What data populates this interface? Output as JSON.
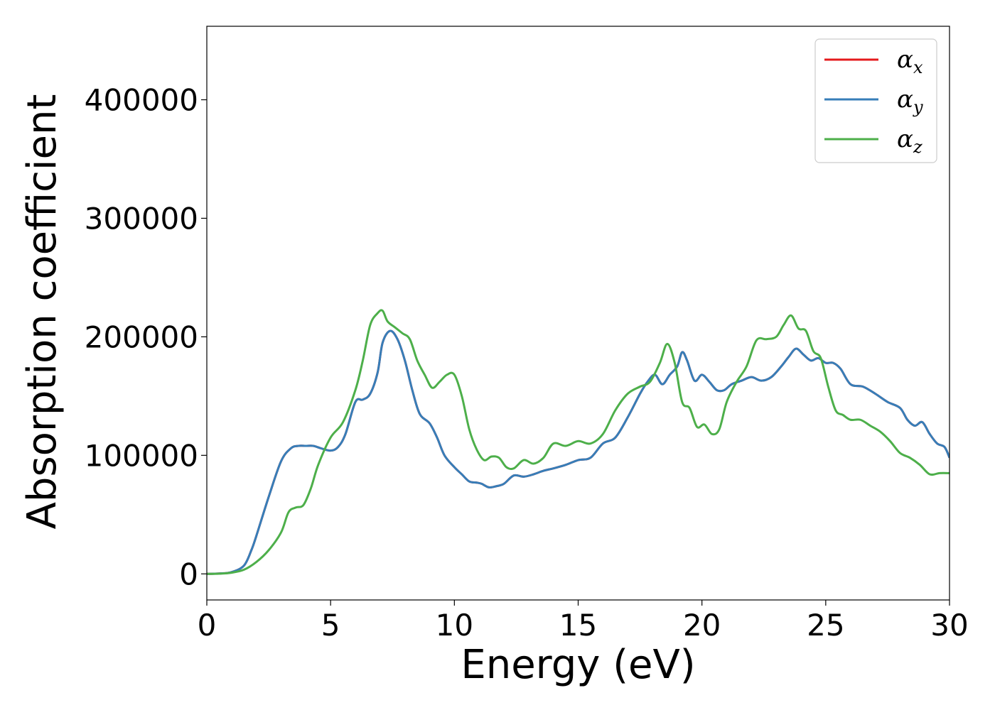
{
  "chart_data": {
    "type": "line",
    "xlabel": "Energy (eV)",
    "ylabel": "Absorption coefficient",
    "xlim": [
      0,
      30
    ],
    "ylim": [
      -22000,
      462000
    ],
    "xticks": [
      0,
      5,
      10,
      15,
      20,
      25,
      30
    ],
    "xtick_labels": [
      "0",
      "5",
      "10",
      "15",
      "20",
      "25",
      "30"
    ],
    "yticks": [
      0,
      100000,
      200000,
      300000,
      400000
    ],
    "ytick_labels": [
      "0",
      "100000",
      "200000",
      "300000",
      "400000"
    ],
    "grid": false,
    "legend": {
      "position": "top-right",
      "entries": [
        {
          "symbol": "α",
          "sub": "x",
          "color": "#e41a1c"
        },
        {
          "symbol": "α",
          "sub": "y",
          "color": "#377eb8"
        },
        {
          "symbol": "α",
          "sub": "z",
          "color": "#4daf4a"
        }
      ]
    },
    "series": [
      {
        "color": "#e41a1c",
        "x": [
          0,
          0.5,
          1,
          1.5,
          1.8,
          2,
          2.5,
          3,
          3.4,
          3.7,
          4,
          4.3,
          4.6,
          5,
          5.3,
          5.6,
          6,
          6.3,
          6.6,
          6.9,
          7.1,
          7.4,
          7.7,
          8,
          8.3,
          8.6,
          9,
          9.3,
          9.6,
          10,
          10.3,
          10.6,
          10.9,
          11.1,
          11.4,
          11.7,
          12,
          12.4,
          12.8,
          13.2,
          13.6,
          14,
          14.5,
          15,
          15.5,
          16,
          16.5,
          17,
          17.5,
          17.8,
          18.1,
          18.4,
          18.7,
          19,
          19.2,
          19.4,
          19.7,
          20,
          20.3,
          20.6,
          20.9,
          21.2,
          21.6,
          22,
          22.4,
          22.8,
          23.2,
          23.5,
          23.8,
          24.1,
          24.4,
          24.7,
          25,
          25.3,
          25.6,
          26,
          26.5,
          27,
          27.5,
          28,
          28.3,
          28.6,
          28.9,
          29.2,
          29.5,
          29.8,
          30
        ],
        "y": [
          0,
          300,
          1500,
          7000,
          20000,
          32000,
          65000,
          95000,
          106000,
          108000,
          108000,
          108000,
          106000,
          104000,
          107000,
          118000,
          145000,
          147000,
          152000,
          170000,
          195000,
          205000,
          198000,
          180000,
          155000,
          135000,
          127000,
          115000,
          100000,
          90000,
          84000,
          78000,
          77000,
          76000,
          73000,
          74000,
          76000,
          83000,
          82000,
          84000,
          87000,
          89000,
          92000,
          96000,
          98000,
          110000,
          115000,
          132000,
          152000,
          162000,
          168000,
          160000,
          168000,
          175000,
          187000,
          180000,
          163000,
          168000,
          162000,
          155000,
          155000,
          160000,
          163000,
          166000,
          163000,
          166000,
          175000,
          183000,
          190000,
          185000,
          180000,
          182000,
          178000,
          178000,
          173000,
          160000,
          158000,
          152000,
          145000,
          140000,
          130000,
          125000,
          128000,
          118000,
          110000,
          107000,
          98000
        ]
      },
      {
        "color": "#377eb8",
        "x": [
          0,
          0.5,
          1,
          1.5,
          1.8,
          2,
          2.5,
          3,
          3.4,
          3.7,
          4,
          4.3,
          4.6,
          5,
          5.3,
          5.6,
          6,
          6.3,
          6.6,
          6.9,
          7.1,
          7.4,
          7.7,
          8,
          8.3,
          8.6,
          9,
          9.3,
          9.6,
          10,
          10.3,
          10.6,
          10.9,
          11.1,
          11.4,
          11.7,
          12,
          12.4,
          12.8,
          13.2,
          13.6,
          14,
          14.5,
          15,
          15.5,
          16,
          16.5,
          17,
          17.5,
          17.8,
          18.1,
          18.4,
          18.7,
          19,
          19.2,
          19.4,
          19.7,
          20,
          20.3,
          20.6,
          20.9,
          21.2,
          21.6,
          22,
          22.4,
          22.8,
          23.2,
          23.5,
          23.8,
          24.1,
          24.4,
          24.7,
          25,
          25.3,
          25.6,
          26,
          26.5,
          27,
          27.5,
          28,
          28.3,
          28.6,
          28.9,
          29.2,
          29.5,
          29.8,
          30
        ],
        "y": [
          0,
          300,
          1500,
          7000,
          20000,
          32000,
          65000,
          95000,
          106000,
          108000,
          108000,
          108000,
          106000,
          104000,
          107000,
          118000,
          145000,
          147000,
          152000,
          170000,
          195000,
          205000,
          198000,
          180000,
          155000,
          135000,
          127000,
          115000,
          100000,
          90000,
          84000,
          78000,
          77000,
          76000,
          73000,
          74000,
          76000,
          83000,
          82000,
          84000,
          87000,
          89000,
          92000,
          96000,
          98000,
          110000,
          115000,
          132000,
          152000,
          162000,
          168000,
          160000,
          168000,
          175000,
          187000,
          180000,
          163000,
          168000,
          162000,
          155000,
          155000,
          160000,
          163000,
          166000,
          163000,
          166000,
          175000,
          183000,
          190000,
          185000,
          180000,
          182000,
          178000,
          178000,
          173000,
          160000,
          158000,
          152000,
          145000,
          140000,
          130000,
          125000,
          128000,
          118000,
          110000,
          107000,
          98000
        ]
      },
      {
        "color": "#4daf4a",
        "x": [
          0,
          0.5,
          1,
          1.5,
          2,
          2.5,
          3,
          3.3,
          3.6,
          3.9,
          4.2,
          4.5,
          5,
          5.5,
          6,
          6.3,
          6.6,
          6.9,
          7.1,
          7.3,
          7.6,
          7.9,
          8.2,
          8.5,
          8.8,
          9.1,
          9.4,
          9.7,
          10,
          10.3,
          10.6,
          10.9,
          11.2,
          11.5,
          11.8,
          12.1,
          12.4,
          12.8,
          13.2,
          13.6,
          14,
          14.5,
          15,
          15.5,
          16,
          16.5,
          17,
          17.5,
          17.9,
          18.3,
          18.6,
          18.9,
          19.2,
          19.5,
          19.8,
          20.1,
          20.4,
          20.7,
          21,
          21.4,
          21.8,
          22.2,
          22.6,
          23,
          23.3,
          23.6,
          23.9,
          24.2,
          24.5,
          24.8,
          25.1,
          25.4,
          25.7,
          26,
          26.4,
          26.8,
          27.2,
          27.6,
          28,
          28.4,
          28.8,
          29.2,
          29.6,
          30
        ],
        "y": [
          0,
          200,
          1000,
          3500,
          10000,
          20000,
          35000,
          52000,
          56000,
          58000,
          72000,
          92000,
          115000,
          128000,
          155000,
          180000,
          210000,
          220000,
          222000,
          213000,
          208000,
          203000,
          198000,
          180000,
          168000,
          157000,
          162000,
          168000,
          168000,
          150000,
          122000,
          105000,
          96000,
          99000,
          98000,
          90000,
          89000,
          96000,
          93000,
          98000,
          110000,
          108000,
          112000,
          110000,
          118000,
          138000,
          152000,
          158000,
          162000,
          178000,
          194000,
          178000,
          145000,
          140000,
          124000,
          126000,
          118000,
          122000,
          145000,
          162000,
          175000,
          197000,
          198000,
          200000,
          210000,
          218000,
          207000,
          205000,
          188000,
          182000,
          158000,
          138000,
          134000,
          130000,
          130000,
          125000,
          120000,
          112000,
          102000,
          98000,
          92000,
          84000,
          85000,
          85000
        ]
      }
    ]
  }
}
